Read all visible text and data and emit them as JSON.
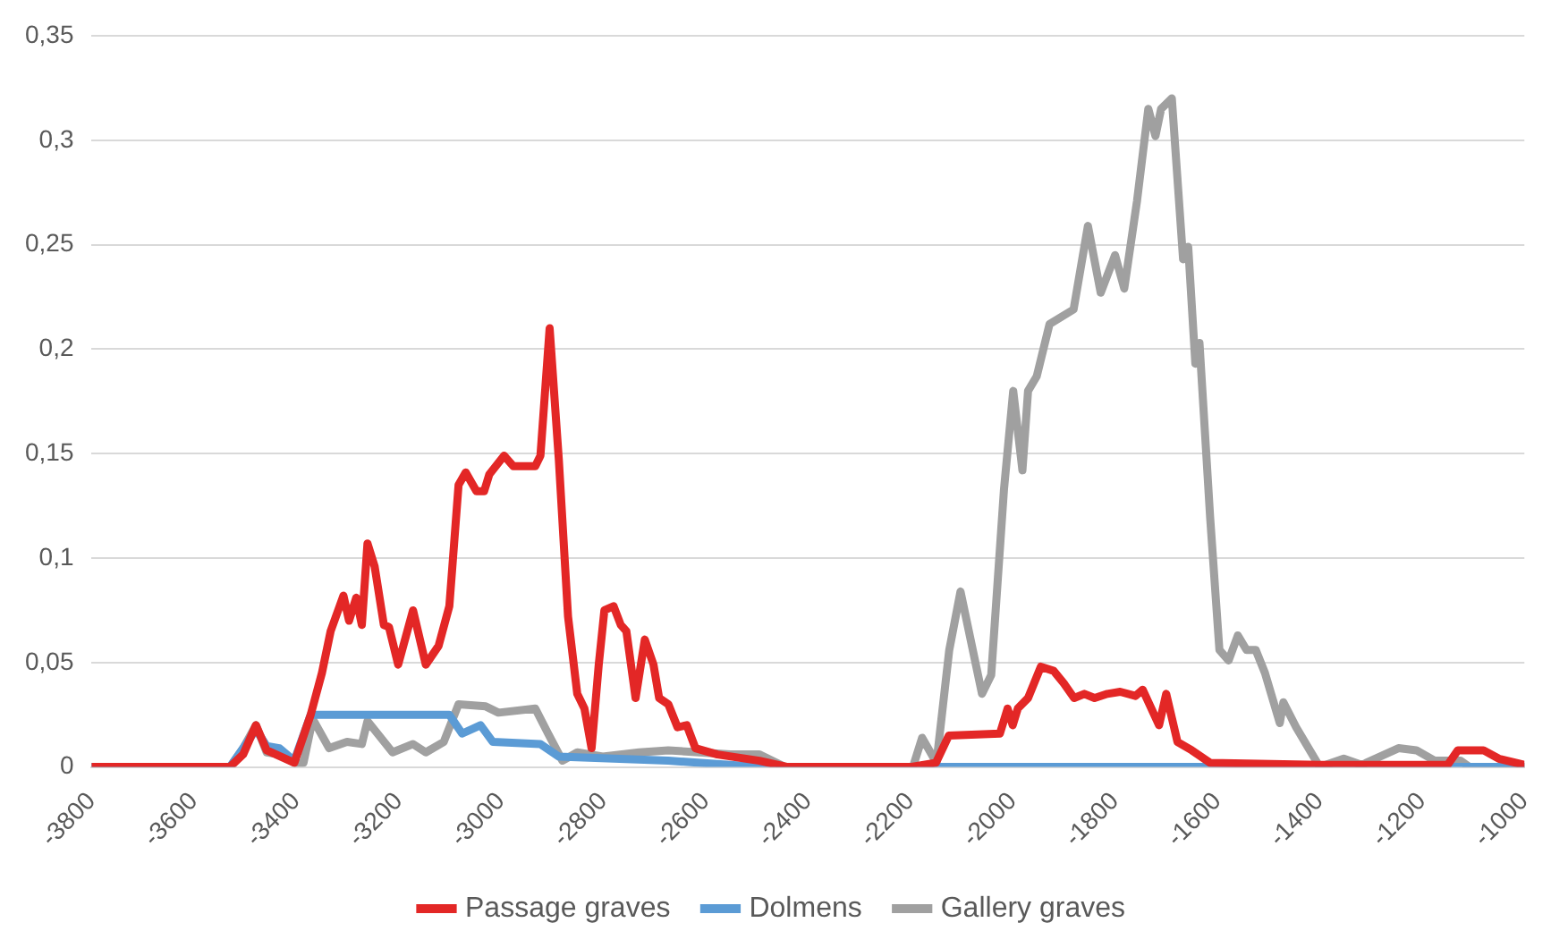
{
  "chart_data": {
    "type": "line",
    "xlim": [
      -3800,
      -1000
    ],
    "xticks": [
      -3800,
      -3600,
      -3400,
      -3200,
      -3000,
      -2800,
      -2600,
      -2400,
      -2200,
      -2000,
      -1800,
      -1600,
      -1400,
      -1200,
      -1000
    ],
    "ylim": [
      0,
      0.35
    ],
    "yticks": [
      {
        "value": 0,
        "label": "0"
      },
      {
        "value": 0.05,
        "label": "0,05"
      },
      {
        "value": 0.1,
        "label": "0,1"
      },
      {
        "value": 0.15,
        "label": "0,15"
      },
      {
        "value": 0.2,
        "label": "0,2"
      },
      {
        "value": 0.25,
        "label": "0,25"
      },
      {
        "value": 0.3,
        "label": "0,3"
      },
      {
        "value": 0.35,
        "label": "0,35"
      }
    ],
    "grid": "y",
    "legend": "bottom",
    "marker": "none",
    "line_style": "solid",
    "series": [
      {
        "name": "Passage graves",
        "color": "#e32726",
        "x": [
          -3800,
          -3530,
          -3504,
          -3479,
          -3458,
          -3404,
          -3372,
          -3350,
          -3333,
          -3308,
          -3297,
          -3283,
          -3272,
          -3261,
          -3247,
          -3229,
          -3219,
          -3201,
          -3172,
          -3147,
          -3122,
          -3101,
          -3083,
          -3069,
          -3048,
          -3033,
          -3023,
          -2994,
          -2976,
          -2933,
          -2923,
          -2905,
          -2887,
          -2869,
          -2851,
          -2837,
          -2823,
          -2809,
          -2798,
          -2780,
          -2766,
          -2755,
          -2737,
          -2719,
          -2702,
          -2691,
          -2673,
          -2655,
          -2637,
          -2620,
          -2577,
          -2495,
          -2440,
          -2200,
          -2150,
          -2125,
          -2025,
          -2010,
          -2000,
          -1990,
          -1970,
          -1945,
          -1920,
          -1900,
          -1880,
          -1860,
          -1840,
          -1815,
          -1790,
          -1760,
          -1746,
          -1714,
          -1700,
          -1678,
          -1650,
          -1614,
          -1400,
          -1150,
          -1130,
          -1080,
          -1050,
          -1000
        ],
        "values": [
          0,
          0,
          0.006,
          0.02,
          0.008,
          0.002,
          0.025,
          0.045,
          0.065,
          0.082,
          0.07,
          0.081,
          0.068,
          0.107,
          0.096,
          0.068,
          0.067,
          0.049,
          0.075,
          0.049,
          0.058,
          0.077,
          0.135,
          0.141,
          0.132,
          0.132,
          0.14,
          0.149,
          0.144,
          0.144,
          0.149,
          0.21,
          0.147,
          0.072,
          0.035,
          0.028,
          0.009,
          0.049,
          0.075,
          0.077,
          0.068,
          0.065,
          0.033,
          0.061,
          0.049,
          0.033,
          0.03,
          0.019,
          0.02,
          0.009,
          0.006,
          0.003,
          0,
          0,
          0.002,
          0.015,
          0.016,
          0.028,
          0.02,
          0.028,
          0.033,
          0.048,
          0.046,
          0.04,
          0.033,
          0.035,
          0.033,
          0.035,
          0.036,
          0.034,
          0.037,
          0.02,
          0.035,
          0.012,
          0.008,
          0.002,
          0.001,
          0.001,
          0.008,
          0.008,
          0.004,
          0.001
        ]
      },
      {
        "name": "Dolmens",
        "color": "#5b9bd5",
        "x": [
          -3800,
          -3530,
          -3504,
          -3479,
          -3458,
          -3433,
          -3404,
          -3372,
          -3101,
          -3076,
          -3040,
          -3016,
          -2923,
          -2887,
          -2673,
          -2495,
          -1000
        ],
        "values": [
          0,
          0,
          0.009,
          0.018,
          0.01,
          0.009,
          0.003,
          0.025,
          0.025,
          0.016,
          0.02,
          0.012,
          0.011,
          0.005,
          0.003,
          0,
          0
        ]
      },
      {
        "name": "Gallery graves",
        "color": "#a0a0a0",
        "x": [
          -3800,
          -3529,
          -3504,
          -3479,
          -3458,
          -3433,
          -3404,
          -3386,
          -3368,
          -3336,
          -3301,
          -3272,
          -3261,
          -3212,
          -3172,
          -3147,
          -3112,
          -3083,
          -3030,
          -3005,
          -2933,
          -2908,
          -2880,
          -2851,
          -2801,
          -2730,
          -2673,
          -2552,
          -2495,
          -2445,
          -2195,
          -2177,
          -2149,
          -2124,
          -2102,
          -2060,
          -2042,
          -2017,
          -1999,
          -1981,
          -1970,
          -1953,
          -1928,
          -1881,
          -1853,
          -1828,
          -1800,
          -1782,
          -1757,
          -1735,
          -1721,
          -1710,
          -1689,
          -1667,
          -1657,
          -1643,
          -1635,
          -1614,
          -1596,
          -1578,
          -1560,
          -1543,
          -1525,
          -1507,
          -1478,
          -1471,
          -1446,
          -1400,
          -1353,
          -1318,
          -1246,
          -1211,
          -1175,
          -1125,
          -1107,
          -1000
        ],
        "values": [
          0,
          0,
          0.009,
          0.02,
          0.007,
          0.006,
          0.002,
          0.002,
          0.023,
          0.009,
          0.012,
          0.011,
          0.022,
          0.007,
          0.011,
          0.007,
          0.012,
          0.03,
          0.029,
          0.026,
          0.028,
          0.016,
          0.003,
          0.007,
          0.005,
          0.007,
          0.008,
          0.006,
          0.006,
          0,
          0,
          0.014,
          0.002,
          0.056,
          0.084,
          0.035,
          0.044,
          0.133,
          0.18,
          0.142,
          0.18,
          0.187,
          0.212,
          0.219,
          0.259,
          0.227,
          0.245,
          0.229,
          0.271,
          0.315,
          0.302,
          0.315,
          0.32,
          0.243,
          0.249,
          0.193,
          0.203,
          0.119,
          0.056,
          0.051,
          0.063,
          0.056,
          0.056,
          0.045,
          0.021,
          0.031,
          0.019,
          0,
          0.004,
          0.001,
          0.009,
          0.008,
          0.003,
          0.003,
          0,
          0
        ]
      }
    ]
  }
}
